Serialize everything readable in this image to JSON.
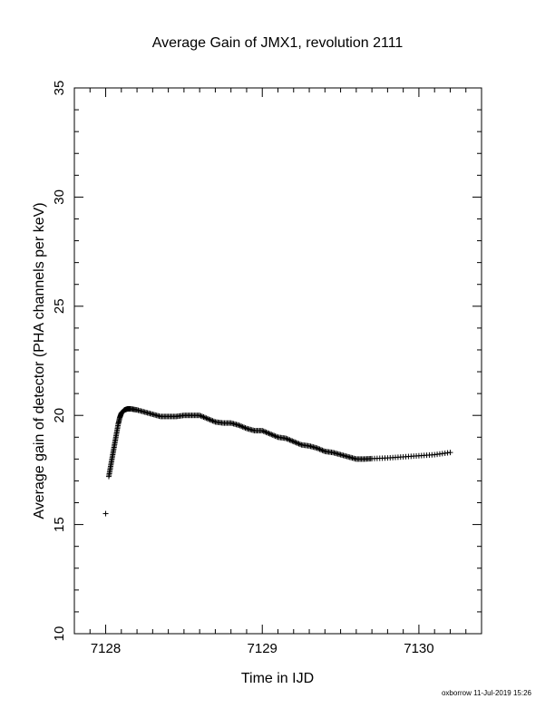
{
  "chart_data": {
    "type": "scatter",
    "title": "Average Gain of JMX1, revolution 2111",
    "xlabel": "Time in IJD",
    "ylabel": "Average gain of detector (PHA channels per keV)",
    "xlim": [
      7127.8,
      7130.4
    ],
    "ylim": [
      10,
      35
    ],
    "xticks": [
      7128,
      7129,
      7130
    ],
    "yticks": [
      10,
      15,
      20,
      25,
      30,
      35
    ],
    "xtick_labels": [
      "7128",
      "7129",
      "7130"
    ],
    "ytick_labels": [
      "10",
      "15",
      "20",
      "25",
      "30",
      "35"
    ],
    "marker": "plus",
    "grid": false,
    "series": [
      {
        "x": [
          7128.0,
          7128.02,
          7128.03,
          7128.04,
          7128.05,
          7128.06,
          7128.07,
          7128.08,
          7128.09,
          7128.1,
          7128.12,
          7128.14,
          7128.16,
          7128.2,
          7128.25,
          7128.3,
          7128.35,
          7128.4,
          7128.45,
          7128.5,
          7128.55,
          7128.6,
          7128.65,
          7128.7,
          7128.75,
          7128.8,
          7128.85,
          7128.9,
          7128.95,
          7129.0,
          7129.05,
          7129.1,
          7129.15,
          7129.2,
          7129.25,
          7129.3,
          7129.35,
          7129.4,
          7129.45,
          7129.5,
          7129.55,
          7129.6,
          7129.65,
          7129.7,
          7129.8,
          7129.9,
          7130.0,
          7130.1,
          7130.2
        ],
        "y": [
          15.5,
          17.2,
          17.6,
          18.0,
          18.4,
          18.8,
          19.2,
          19.6,
          19.9,
          20.1,
          20.25,
          20.3,
          20.3,
          20.25,
          20.15,
          20.05,
          19.95,
          19.95,
          19.95,
          20.0,
          20.0,
          20.0,
          19.85,
          19.7,
          19.65,
          19.65,
          19.55,
          19.4,
          19.3,
          19.3,
          19.15,
          19.0,
          18.95,
          18.8,
          18.65,
          18.6,
          18.5,
          18.35,
          18.3,
          18.2,
          18.1,
          18.0,
          18.0,
          18.02,
          18.05,
          18.1,
          18.15,
          18.2,
          18.3
        ]
      }
    ]
  },
  "footer": "oxborrow 11-Jul-2019 15:26"
}
